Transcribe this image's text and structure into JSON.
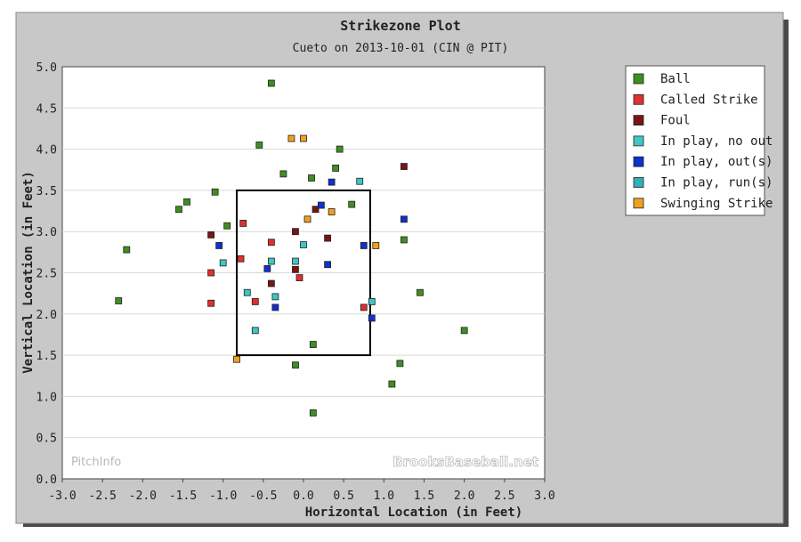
{
  "chart_data": {
    "type": "scatter",
    "title": "Strikezone Plot",
    "subtitle": "Cueto on 2013-10-01 (CIN @ PIT)",
    "xlabel": "Horizontal Location (in Feet)",
    "ylabel": "Vertical Location (in Feet)",
    "xlim": [
      -3.0,
      3.0
    ],
    "ylim": [
      0.0,
      5.0
    ],
    "xticks": [
      "-3.0",
      "-2.5",
      "-2.0",
      "-1.5",
      "-1.0",
      "-0.5",
      "0.0",
      "0.5",
      "1.0",
      "1.5",
      "2.0",
      "2.5",
      "3.0"
    ],
    "yticks": [
      "0.0",
      "0.5",
      "1.0",
      "1.5",
      "2.0",
      "2.5",
      "3.0",
      "3.5",
      "4.0",
      "4.5",
      "5.0"
    ],
    "grid": "horizontal",
    "legend_position": "right",
    "strike_zone": {
      "x": [
        -0.83,
        0.83
      ],
      "y": [
        1.5,
        3.5
      ]
    },
    "watermarks": [
      "PitchInfo",
      "BrooksBaseball.net"
    ],
    "series": [
      {
        "name": "Ball",
        "color": "#3f8f1f",
        "points": [
          [
            -0.4,
            4.8
          ],
          [
            -0.55,
            4.05
          ],
          [
            0.45,
            4.0
          ],
          [
            0.4,
            3.77
          ],
          [
            -0.25,
            3.7
          ],
          [
            0.1,
            3.65
          ],
          [
            -1.1,
            3.48
          ],
          [
            -1.45,
            3.36
          ],
          [
            -1.55,
            3.27
          ],
          [
            0.6,
            3.33
          ],
          [
            -0.95,
            3.07
          ],
          [
            -2.2,
            2.78
          ],
          [
            1.25,
            2.9
          ],
          [
            -2.3,
            2.16
          ],
          [
            1.45,
            2.26
          ],
          [
            2.0,
            1.8
          ],
          [
            0.12,
            1.63
          ],
          [
            -0.1,
            1.38
          ],
          [
            1.2,
            1.4
          ],
          [
            1.1,
            1.15
          ],
          [
            0.12,
            0.8
          ]
        ]
      },
      {
        "name": "Called Strike",
        "color": "#e03030",
        "points": [
          [
            -0.75,
            3.1
          ],
          [
            -0.4,
            2.87
          ],
          [
            -0.78,
            2.67
          ],
          [
            -1.15,
            2.5
          ],
          [
            -0.05,
            2.44
          ],
          [
            -1.15,
            2.13
          ],
          [
            -0.6,
            2.15
          ],
          [
            0.75,
            2.08
          ]
        ]
      },
      {
        "name": "Foul",
        "color": "#7a1414",
        "points": [
          [
            1.25,
            3.79
          ],
          [
            0.15,
            3.27
          ],
          [
            -1.15,
            2.96
          ],
          [
            -0.1,
            3.0
          ],
          [
            0.3,
            2.92
          ],
          [
            -0.1,
            2.54
          ],
          [
            -0.4,
            2.37
          ]
        ]
      },
      {
        "name": "In play, no out",
        "color": "#40c4c4",
        "points": [
          [
            0.7,
            3.61
          ],
          [
            0.0,
            2.84
          ],
          [
            -1.0,
            2.62
          ],
          [
            -0.4,
            2.64
          ],
          [
            -0.1,
            2.64
          ],
          [
            -0.7,
            2.26
          ],
          [
            -0.35,
            2.21
          ],
          [
            0.85,
            2.15
          ],
          [
            -0.6,
            1.8
          ]
        ]
      },
      {
        "name": "In play, out(s)",
        "color": "#1030d0",
        "points": [
          [
            0.35,
            3.6
          ],
          [
            0.22,
            3.32
          ],
          [
            1.25,
            3.15
          ],
          [
            -1.05,
            2.83
          ],
          [
            0.75,
            2.83
          ],
          [
            -0.45,
            2.55
          ],
          [
            0.3,
            2.6
          ],
          [
            -0.35,
            2.08
          ],
          [
            0.85,
            1.95
          ]
        ]
      },
      {
        "name": "In play, run(s)",
        "color": "#30b0b8",
        "points": []
      },
      {
        "name": "Swinging Strike",
        "color": "#f0a020",
        "points": [
          [
            -0.15,
            4.13
          ],
          [
            0.0,
            4.13
          ],
          [
            0.35,
            3.24
          ],
          [
            0.05,
            3.15
          ],
          [
            0.9,
            2.83
          ],
          [
            -0.83,
            1.45
          ]
        ]
      }
    ]
  }
}
